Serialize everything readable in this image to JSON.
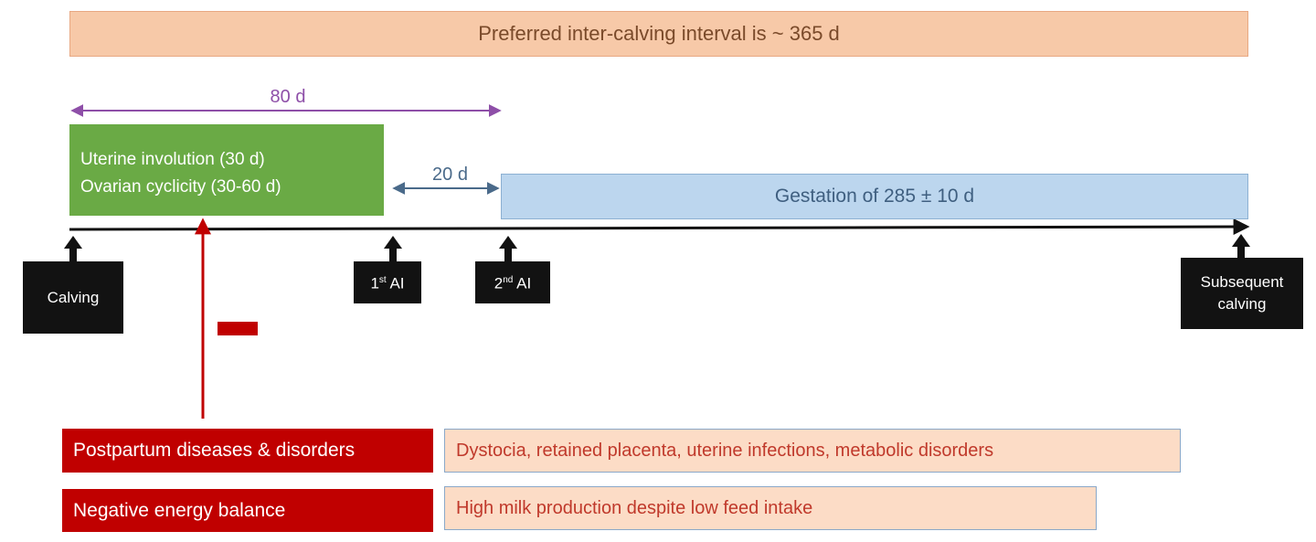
{
  "banner": {
    "text": "Preferred inter-calving interval is ~ 365 d"
  },
  "spans": {
    "eighty_days": "80 d",
    "twenty_days": "20 d"
  },
  "green_box": {
    "line1": "Uterine involution (30 d)",
    "line2": "Ovarian cyclicity (30-60 d)"
  },
  "gestation": {
    "text": "Gestation of 285 ± 10 d"
  },
  "events": {
    "calving": "Calving",
    "ai1_num": "1",
    "ai1_sup": "st",
    "ai1_suffix": " AI",
    "ai2_num": "2",
    "ai2_sup": "nd",
    "ai2_suffix": " AI",
    "subsequent_line1": "Subsequent",
    "subsequent_line2": "calving"
  },
  "factors": [
    {
      "label": "Postpartum diseases & disorders",
      "description": "Dystocia, retained placenta, uterine infections, metabolic disorders"
    },
    {
      "label": "Negative energy balance",
      "description": "High milk production despite low feed intake"
    }
  ],
  "colors": {
    "banner_bg": "#f7c9a8",
    "green": "#6aaa45",
    "gestation_bg": "#bcd6ee",
    "event_bg": "#121212",
    "red": "#c00000",
    "purple": "#8e4fa8",
    "pink_bg": "#fcdcc6"
  }
}
